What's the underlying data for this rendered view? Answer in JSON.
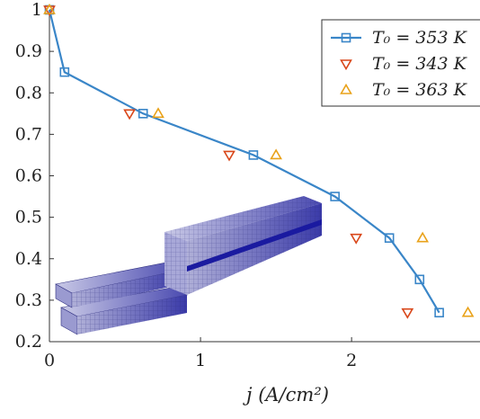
{
  "chart_data": {
    "type": "scatter",
    "title": "",
    "xlabel": "j (A/cm²)",
    "ylabel": "",
    "xlim": [
      0,
      2.85
    ],
    "ylim": [
      0.2,
      1.0
    ],
    "grid": false,
    "legend_position": "top-right",
    "x_ticks": [
      "0",
      "1",
      "2"
    ],
    "y_ticks": [
      "0.2",
      "0.3",
      "0.4",
      "0.5",
      "0.6",
      "0.7",
      "0.8",
      "0.9",
      "1"
    ],
    "series": [
      {
        "name": "T₀ = 353 K",
        "marker": "square",
        "line": true,
        "color": "#3a86c8",
        "x": [
          0.0,
          0.1,
          0.62,
          1.35,
          1.89,
          2.25,
          2.45,
          2.58
        ],
        "y": [
          1.0,
          0.85,
          0.75,
          0.65,
          0.55,
          0.45,
          0.35,
          0.27
        ]
      },
      {
        "name": "T₀ = 343 K",
        "marker": "triangle-down",
        "line": false,
        "color": "#d9471a",
        "x": [
          0.0,
          0.53,
          1.19,
          2.03,
          2.37
        ],
        "y": [
          1.0,
          0.75,
          0.65,
          0.45,
          0.27
        ]
      },
      {
        "name": "T₀ = 363 K",
        "marker": "triangle-up",
        "line": false,
        "color": "#e9a21a",
        "x": [
          0.0,
          0.72,
          1.5,
          2.47,
          2.77
        ],
        "y": [
          1.0,
          0.75,
          0.65,
          0.45,
          0.27
        ]
      }
    ]
  },
  "inset": {
    "description_icon": "fuel-cell-mesh-3d"
  }
}
